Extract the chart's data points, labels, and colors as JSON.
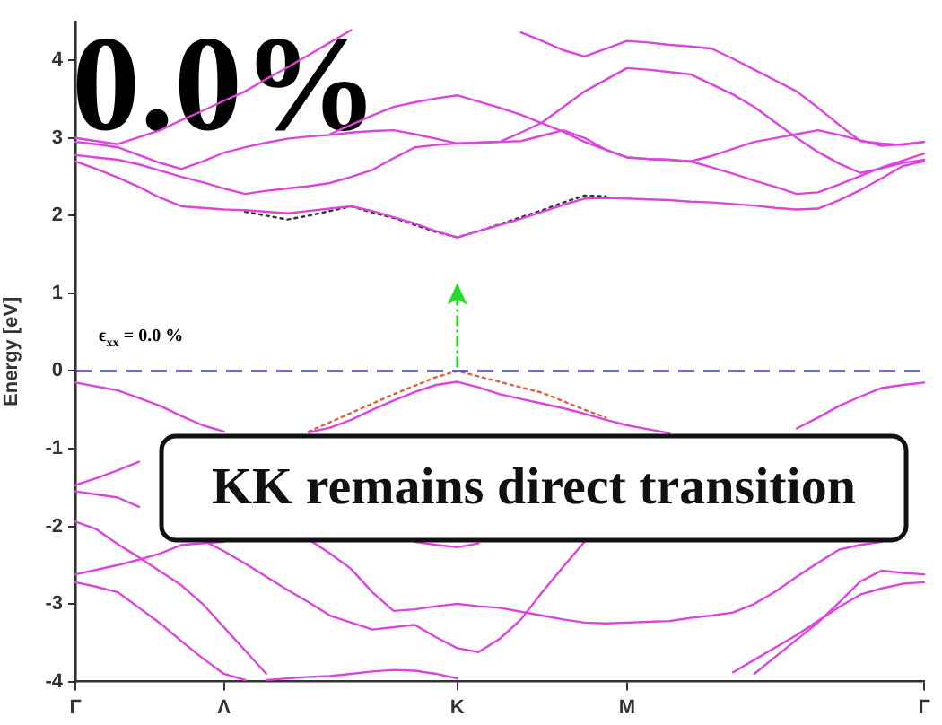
{
  "chart_data": {
    "type": "line",
    "categories": [
      "Γ",
      null,
      null,
      null,
      null,
      null,
      null,
      "Λ",
      null,
      null,
      null,
      null,
      null,
      null,
      null,
      null,
      null,
      null,
      "K",
      null,
      null,
      null,
      null,
      null,
      null,
      null,
      "M",
      null,
      null,
      null,
      null,
      null,
      null,
      null,
      null,
      null,
      null,
      null,
      null,
      null,
      "Γ"
    ],
    "ylim": [
      -4,
      4.5
    ],
    "yticks": [
      -4,
      -3,
      -2,
      -1,
      0,
      1,
      2,
      3,
      4
    ],
    "ylabel": "Energy [eV]",
    "grid": false,
    "legend": false,
    "marker": "none",
    "line_style": "solid",
    "ref_lines": [
      {
        "axis": "y",
        "value": 0,
        "color": "#3c3ca8",
        "line_style": "dashed"
      }
    ],
    "annotations": [
      {
        "text": "KK remains direct transition",
        "x": "K",
        "y": 0
      },
      "0.0%",
      "ϵ$_{xx}$ = 0.0 %"
    ],
    "series": [
      {
        "color": "#dd44dd",
        "values": [
          2.7,
          2.6,
          2.49,
          2.37,
          2.23,
          2.12,
          2.1,
          2.08,
          2.07,
          2.05,
          2.03,
          2.06,
          2.09,
          2.12,
          2.06,
          1.98,
          1.9,
          1.8,
          1.72,
          1.8,
          1.88,
          1.96,
          2.05,
          2.14,
          2.22,
          2.23,
          2.22,
          2.21,
          2.2,
          2.18,
          2.17,
          2.15,
          2.13,
          2.1,
          2.08,
          2.09,
          2.2,
          2.33,
          2.48,
          2.64,
          2.7
        ]
      },
      {
        "color": "#dd44dd",
        "values": [
          2.78,
          2.75,
          2.72,
          2.66,
          2.58,
          2.5,
          2.43,
          2.35,
          2.28,
          2.32,
          2.35,
          2.38,
          2.42,
          2.5,
          2.59,
          2.74,
          2.88,
          2.91,
          2.93,
          2.94,
          2.95,
          2.96,
          3.03,
          3.1,
          3.0,
          2.85,
          2.75,
          2.73,
          2.72,
          2.7,
          2.62,
          2.54,
          2.45,
          2.37,
          2.28,
          2.3,
          2.4,
          2.51,
          2.62,
          2.71,
          2.8
        ]
      },
      {
        "color": "#dd44dd",
        "values": [
          2.95,
          2.92,
          2.88,
          2.78,
          2.68,
          2.6,
          2.7,
          2.81,
          2.88,
          2.94,
          2.99,
          3.02,
          3.04,
          3.07,
          3.09,
          3.1,
          3.05,
          2.99,
          2.93,
          2.94,
          2.95,
          3.07,
          3.2,
          3.4,
          3.6,
          3.75,
          3.9,
          3.88,
          3.85,
          3.82,
          3.69,
          3.56,
          3.4,
          3.2,
          3.0,
          2.82,
          2.67,
          2.55,
          2.61,
          2.68,
          2.72
        ]
      },
      {
        "color": "#dd44dd",
        "values": [
          null,
          null,
          null,
          null,
          null,
          null,
          null,
          null,
          null,
          null,
          null,
          null,
          3.05,
          3.17,
          3.29,
          3.4,
          3.46,
          3.51,
          3.55,
          3.47,
          3.39,
          3.3,
          3.19,
          3.08,
          2.95,
          2.85,
          2.75,
          2.73,
          2.72,
          2.7,
          2.77,
          2.86,
          2.95,
          3.0,
          3.05,
          3.1,
          3.04,
          2.97,
          2.9,
          2.92,
          2.95
        ]
      },
      {
        "color": "#dd44dd",
        "values": [
          3.0,
          2.96,
          2.92,
          3.01,
          3.1,
          3.23,
          3.35,
          3.48,
          3.6,
          3.76,
          3.91,
          4.07,
          4.23,
          4.39,
          null,
          null,
          null,
          null,
          null,
          null,
          null,
          null,
          null,
          null,
          null,
          null,
          null,
          null,
          null,
          null,
          null,
          null,
          null,
          null,
          null,
          null,
          null,
          null,
          null,
          null,
          null
        ]
      },
      {
        "color": "#dd44dd",
        "values": [
          null,
          null,
          null,
          null,
          null,
          null,
          null,
          null,
          null,
          null,
          null,
          null,
          null,
          null,
          null,
          null,
          null,
          null,
          null,
          null,
          null,
          4.36,
          4.25,
          4.13,
          4.05,
          4.15,
          4.25,
          4.23,
          4.2,
          4.18,
          4.15,
          4.02,
          3.88,
          3.74,
          3.6,
          3.39,
          3.17,
          2.96,
          2.93,
          2.91,
          2.95
        ]
      },
      {
        "color": "#dd44dd",
        "values": [
          -0.15,
          -0.2,
          -0.25,
          -0.35,
          -0.45,
          -0.58,
          -0.7,
          -0.78,
          null,
          null,
          null,
          -0.79,
          -0.73,
          -0.63,
          -0.5,
          -0.38,
          -0.27,
          -0.18,
          -0.14,
          -0.21,
          -0.3,
          -0.36,
          -0.42,
          -0.48,
          -0.55,
          -0.63,
          -0.7,
          -0.75,
          -0.8,
          null,
          null,
          null,
          null,
          null,
          -0.74,
          -0.6,
          -0.45,
          -0.33,
          -0.22,
          -0.18,
          -0.15
        ]
      },
      {
        "color": "#dd44dd",
        "values": [
          -1.47,
          -1.38,
          -1.28,
          -1.17,
          null,
          null,
          null,
          null,
          null,
          null,
          null,
          null,
          null,
          null,
          null,
          null,
          null,
          null,
          null,
          null,
          null,
          null,
          null,
          null,
          null,
          null,
          null,
          null,
          null,
          null,
          null,
          null,
          null,
          null,
          null,
          null,
          null,
          null,
          null,
          null,
          null
        ]
      },
      {
        "color": "#dd44dd",
        "values": [
          -1.55,
          -1.59,
          -1.63,
          -1.75,
          null,
          null,
          -2.18,
          -2.32,
          -2.48,
          -2.65,
          -2.82,
          -2.98,
          -3.15,
          -3.24,
          -3.33,
          -3.3,
          -3.27,
          -3.43,
          -3.57,
          -3.62,
          -3.45,
          -3.2,
          -2.85,
          -2.52,
          -2.2,
          null,
          null,
          null,
          null,
          null,
          null,
          null,
          null,
          null,
          null,
          null,
          null,
          null,
          null,
          null,
          null
        ]
      },
      {
        "color": "#dd44dd",
        "values": [
          null,
          null,
          null,
          null,
          null,
          null,
          null,
          null,
          null,
          null,
          null,
          -2.17,
          -2.35,
          -2.55,
          -2.85,
          -3.09,
          -3.07,
          -3.03,
          -3.0,
          -3.03,
          -3.05,
          -3.1,
          -3.15,
          -3.2,
          -3.24,
          -3.25,
          -3.24,
          -3.23,
          -3.22,
          -3.18,
          -3.15,
          -3.11,
          -3.0,
          -2.84,
          -2.65,
          -2.47,
          -2.3,
          -2.24,
          -2.2,
          null,
          null
        ]
      },
      {
        "color": "#dd44dd",
        "values": [
          -1.94,
          -2.04,
          -2.23,
          -2.4,
          -2.58,
          -2.76,
          -3.0,
          -3.3,
          -3.6,
          -3.9,
          null,
          null,
          null,
          null,
          null,
          null,
          null,
          null,
          null,
          null,
          null,
          null,
          null,
          null,
          null,
          null,
          null,
          null,
          null,
          null,
          null,
          null,
          null,
          null,
          null,
          null,
          null,
          null,
          null,
          null,
          null
        ]
      },
      {
        "color": "#dd44dd",
        "values": [
          null,
          null,
          null,
          null,
          null,
          null,
          null,
          null,
          null,
          -3.98,
          -3.96,
          -3.94,
          -3.93,
          -3.9,
          -3.87,
          -3.85,
          -3.86,
          -3.9,
          -3.96,
          null,
          null,
          null,
          null,
          null,
          null,
          null,
          null,
          null,
          null,
          null,
          null,
          null,
          null,
          null,
          null,
          null,
          null,
          null,
          null,
          null,
          null
        ]
      },
      {
        "color": "#dd44dd",
        "values": [
          -2.62,
          -2.56,
          -2.5,
          -2.43,
          -2.35,
          -2.24,
          -2.22,
          -2.2,
          null,
          null,
          null,
          null,
          null,
          null,
          null,
          null,
          null,
          null,
          null,
          null,
          null,
          null,
          null,
          null,
          null,
          null,
          null,
          null,
          null,
          null,
          null,
          null,
          null,
          null,
          null,
          null,
          null,
          null,
          null,
          null,
          null
        ]
      },
      {
        "color": "#dd44dd",
        "values": [
          -2.72,
          -2.78,
          -2.85,
          -3.05,
          -3.25,
          -3.48,
          -3.7,
          -3.9,
          -3.98,
          null,
          null,
          null,
          null,
          null,
          null,
          null,
          null,
          null,
          null,
          null,
          null,
          null,
          null,
          null,
          null,
          null,
          null,
          null,
          null,
          null,
          null,
          null,
          null,
          null,
          null,
          null,
          null,
          null,
          null,
          null,
          null
        ]
      },
      {
        "color": "#dd44dd",
        "values": [
          null,
          null,
          null,
          null,
          null,
          null,
          null,
          null,
          null,
          null,
          null,
          null,
          null,
          null,
          null,
          null,
          -2.2,
          -2.24,
          -2.27,
          -2.22,
          null,
          null,
          null,
          null,
          null,
          null,
          null,
          null,
          null,
          null,
          null,
          null,
          null,
          null,
          null,
          null,
          null,
          null,
          null,
          null,
          null
        ]
      },
      {
        "color": "#dd44dd",
        "values": [
          null,
          null,
          null,
          null,
          null,
          null,
          null,
          null,
          null,
          null,
          null,
          null,
          null,
          null,
          null,
          null,
          null,
          null,
          null,
          null,
          null,
          null,
          null,
          null,
          null,
          null,
          null,
          null,
          null,
          null,
          null,
          -3.88,
          -3.72,
          -3.56,
          -3.4,
          -3.22,
          -3.04,
          -2.88,
          -2.8,
          -2.74,
          -2.72
        ]
      },
      {
        "color": "#dd44dd",
        "values": [
          null,
          null,
          null,
          null,
          null,
          null,
          null,
          null,
          null,
          null,
          null,
          null,
          null,
          null,
          null,
          null,
          null,
          null,
          null,
          null,
          null,
          null,
          null,
          null,
          null,
          null,
          null,
          null,
          null,
          null,
          null,
          null,
          -3.9,
          -3.68,
          -3.46,
          -3.24,
          -2.98,
          -2.71,
          -2.57,
          -2.6,
          -2.62
        ]
      },
      {
        "color": "#333333",
        "line_style": "dotted",
        "values": [
          null,
          null,
          null,
          null,
          null,
          null,
          null,
          null,
          2.05,
          2.0,
          1.95,
          2.0,
          2.06,
          2.12,
          2.04,
          1.97,
          1.88,
          1.79,
          1.72,
          1.8,
          1.89,
          1.98,
          2.07,
          2.17,
          2.26,
          2.25,
          null,
          null,
          null,
          null,
          null,
          null,
          null,
          null,
          null,
          null,
          null,
          null,
          null,
          null,
          null
        ]
      },
      {
        "color": "#e0603a",
        "line_style": "dotted",
        "values": [
          null,
          null,
          null,
          null,
          null,
          null,
          null,
          null,
          null,
          null,
          null,
          -0.78,
          -0.66,
          -0.54,
          -0.42,
          -0.3,
          -0.19,
          -0.08,
          0,
          -0.07,
          -0.14,
          -0.21,
          -0.28,
          -0.39,
          -0.5,
          -0.6,
          null,
          null,
          null,
          null,
          null,
          null,
          null,
          null,
          null,
          null,
          null,
          null,
          null,
          null,
          null
        ]
      }
    ]
  }
}
